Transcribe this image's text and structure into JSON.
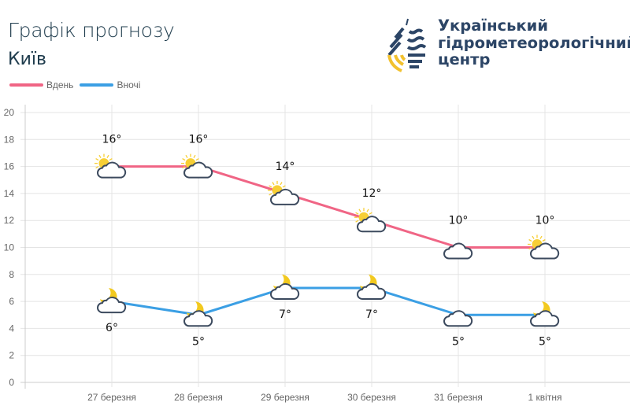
{
  "header": {
    "title": "Графік прогнозу",
    "city": "Київ",
    "logo_lines": [
      "Український",
      "гідрометеорологічний",
      "центр"
    ]
  },
  "colors": {
    "day": "#f06585",
    "night": "#3b9fe4",
    "cloud_stroke": "#3c4a5e",
    "sun": "#f7cf35",
    "moon": "#f2c91f"
  },
  "chart_data": {
    "type": "line",
    "categories": [
      "27 березня",
      "28 березня",
      "29 березня",
      "30 березня",
      "31 березня",
      "1 квітня"
    ],
    "ylim": [
      0,
      20
    ],
    "yticks": [
      0,
      2,
      4,
      6,
      8,
      10,
      12,
      14,
      16,
      18,
      20
    ],
    "grid": true,
    "legend": "top-left",
    "series": [
      {
        "name": "Вдень",
        "values": [
          16,
          16,
          14,
          12,
          10,
          10
        ],
        "labels": [
          "16°",
          "16°",
          "14°",
          "12°",
          "10°",
          "10°"
        ],
        "icons": [
          "sun-cloud",
          "sun-cloud",
          "sun-cloud",
          "sun-cloud",
          "cloud",
          "sun-cloud"
        ]
      },
      {
        "name": "Вночі",
        "values": [
          6,
          5,
          7,
          7,
          5,
          5
        ],
        "labels": [
          "6°",
          "5°",
          "7°",
          "7°",
          "5°",
          "5°"
        ],
        "icons": [
          "moon-cloud",
          "moon-cloud",
          "moon-cloud",
          "moon-cloud",
          "cloud",
          "moon-cloud"
        ]
      }
    ]
  }
}
